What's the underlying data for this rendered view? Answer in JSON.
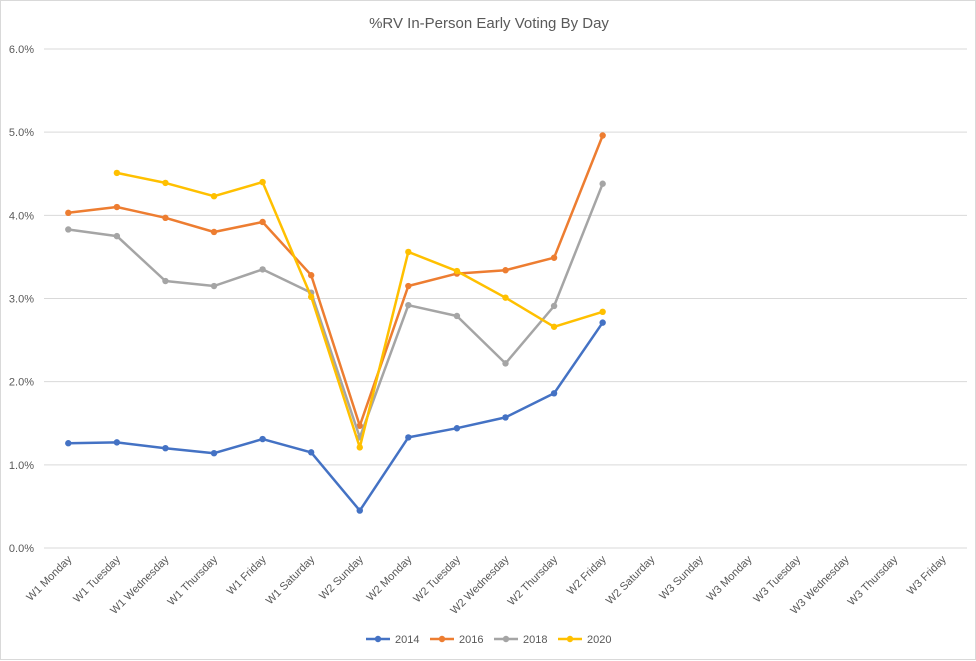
{
  "chart_data": {
    "type": "line",
    "title": "%RV In-Person Early Voting By Day",
    "xlabel": "",
    "ylabel": "",
    "ylim": [
      0,
      6
    ],
    "yticks": [
      "0.0%",
      "1.0%",
      "2.0%",
      "3.0%",
      "4.0%",
      "5.0%",
      "6.0%"
    ],
    "grid": true,
    "legend_position": "bottom",
    "categories": [
      "W1 Monday",
      "W1 Tuesday",
      "W1 Wednesday",
      "W1 Thursday",
      "W1 Friday",
      "W1 Saturday",
      "W2 Sunday",
      "W2 Monday",
      "W2 Tuesday",
      "W2 Wednesday",
      "W2 Thursday",
      "W2 Friday",
      "W2 Saturday",
      "W3 Sunday",
      "W3 Monday",
      "W3 Tuesday",
      "W3 Wednesday",
      "W3 Thursday",
      "W3 Friday"
    ],
    "series": [
      {
        "name": "2014",
        "color": "#4472C4",
        "values": [
          1.26,
          1.27,
          1.2,
          1.14,
          1.31,
          1.15,
          0.45,
          1.33,
          1.44,
          1.57,
          1.86,
          2.71,
          null,
          null,
          null,
          null,
          null,
          null,
          null
        ]
      },
      {
        "name": "2016",
        "color": "#ED7D31",
        "values": [
          4.03,
          4.1,
          3.97,
          3.8,
          3.92,
          3.28,
          1.47,
          3.15,
          3.3,
          3.34,
          3.49,
          4.96,
          null,
          null,
          null,
          null,
          null,
          null,
          null
        ]
      },
      {
        "name": "2018",
        "color": "#A5A5A5",
        "values": [
          3.83,
          3.75,
          3.21,
          3.15,
          3.35,
          3.07,
          1.33,
          2.92,
          2.79,
          2.22,
          2.91,
          4.38,
          null,
          null,
          null,
          null,
          null,
          null,
          null
        ]
      },
      {
        "name": "2020",
        "color": "#FFC000",
        "values": [
          null,
          4.51,
          4.39,
          4.23,
          4.4,
          3.02,
          1.21,
          3.56,
          3.33,
          3.01,
          2.66,
          2.84,
          null,
          null,
          null,
          null,
          null,
          null,
          null
        ]
      }
    ]
  }
}
